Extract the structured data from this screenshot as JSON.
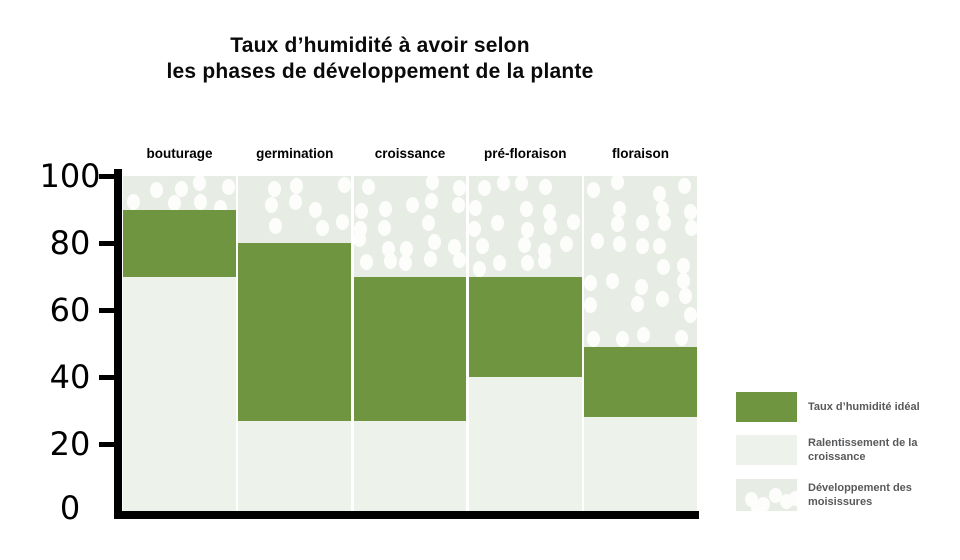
{
  "title": {
    "line1": "Taux d’humidité à avoir selon",
    "line2": "les phases de développement de la plante"
  },
  "chart_data": {
    "type": "bar",
    "variant": "floating-range-columns",
    "title": "Taux d’humidité à avoir selon les phases de développement de la plante",
    "categories": [
      "bouturage",
      "germination",
      "croissance",
      "pré-floraison",
      "floraison"
    ],
    "series": [
      {
        "name": "Taux d’humidité idéal",
        "ranges": [
          [
            70,
            90
          ],
          [
            27,
            80
          ],
          [
            27,
            70
          ],
          [
            40,
            70
          ],
          [
            28,
            49
          ]
        ]
      }
    ],
    "zone_below_label": "Ralentissement de la croissance",
    "zone_above_label": "Développement des moisissures",
    "xlabel": "",
    "ylabel": "",
    "ylim": [
      0,
      100
    ],
    "yticks": [
      0,
      20,
      40,
      60,
      80,
      100
    ],
    "grid": false,
    "legend_position": "right"
  },
  "legend": {
    "items": [
      {
        "label": "Taux d’humidité idéal",
        "swatch": "solid-green"
      },
      {
        "label": "Ralentissement de la croissance",
        "swatch": "light-green"
      },
      {
        "label": "Développement des moisissures",
        "swatch": "light-green-dots"
      }
    ]
  },
  "colors": {
    "ideal_green": "#6f9540",
    "zone_light": "#edf3ea",
    "mold_zone_light": "#e7ede5",
    "dot_white": "#fdfefc",
    "axis_black": "#000000",
    "legend_text": "#58595b",
    "title_text": "#0a0a0a"
  }
}
